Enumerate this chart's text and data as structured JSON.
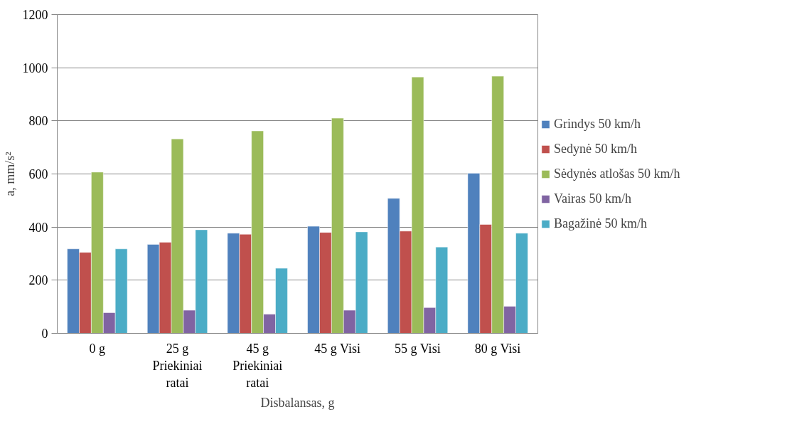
{
  "chart_data": {
    "type": "bar",
    "xlabel": "Disbalansas, g",
    "ylabel": "a, mm/s²",
    "categories": [
      "0 g",
      "25 g Priekiniai ratai",
      "45 g Priekiniai ratai",
      "45 g Visi",
      "55 g Visi",
      "80 g Visi"
    ],
    "series": [
      {
        "name": "Grindys 50 km/h",
        "color": "#4f81bd",
        "values": [
          318,
          335,
          377,
          403,
          508,
          603
        ]
      },
      {
        "name": "Sedynė 50 km/h",
        "color": "#c0504d",
        "values": [
          305,
          343,
          373,
          380,
          385,
          410
        ]
      },
      {
        "name": "Sėdynės atlošas 50 km/h",
        "color": "#9bbb59",
        "values": [
          607,
          732,
          762,
          810,
          965,
          968
        ]
      },
      {
        "name": "Vairas 50 km/h",
        "color": "#8064a2",
        "values": [
          78,
          87,
          72,
          87,
          97,
          102
        ]
      },
      {
        "name": "Bagažinė 50 km/h",
        "color": "#4bacc6",
        "values": [
          318,
          390,
          245,
          382,
          325,
          377
        ]
      }
    ],
    "ylim": [
      0,
      1200
    ],
    "yticks": [
      0,
      200,
      400,
      600,
      800,
      1000,
      1200
    ],
    "grid": "y",
    "legend": "right"
  }
}
